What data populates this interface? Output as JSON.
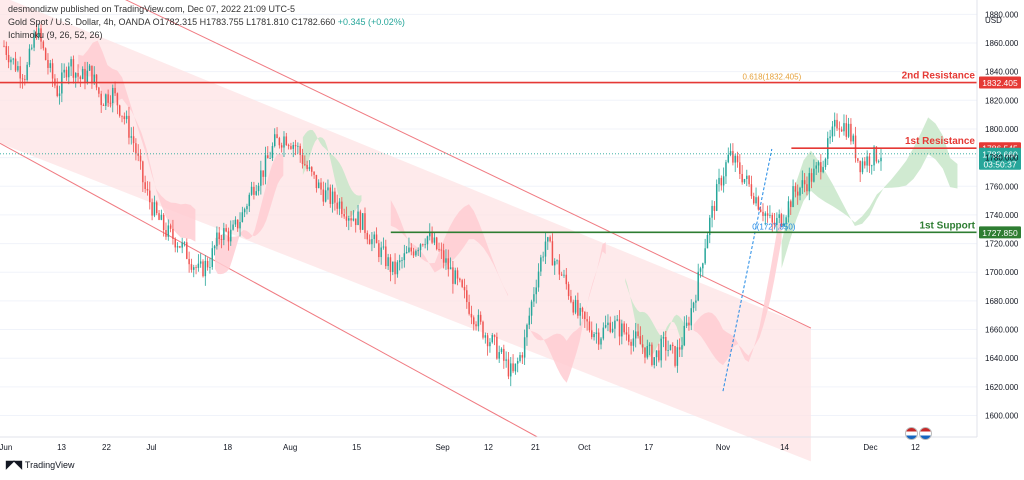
{
  "header": {
    "publisher": "desmondizw published on TradingView.com, Dec 07, 2022 21:09 UTC-5",
    "instrument": "Gold Spot / U.S. Dollar, 4h, OANDA",
    "ohlc": "O1782.315  H1783.755  L1781.810  C1782.660",
    "change": "+0.345 (+0.02%)",
    "indicator": "Ichimoku (9, 26, 52, 26)"
  },
  "footer": {
    "brand": "TradingView"
  },
  "colors": {
    "channel_fill": "#fde3e4",
    "channel_line": "#f07b82",
    "resistance": "#e53935",
    "support": "#2e7d32",
    "fib_text": "#e6a23c",
    "price_tag": "#26a69a",
    "up_candle": "#26a69a",
    "down_candle": "#ef5350",
    "cloud_bull": "#c8e6c9",
    "cloud_bear": "#ffcdd2"
  },
  "chart_data": {
    "type": "candlestick",
    "currency_label": "USD",
    "ylim": [
      1585,
      1890
    ],
    "y_ticks": [
      1600,
      1620,
      1640,
      1660,
      1680,
      1700,
      1720,
      1740,
      1760,
      1780,
      1800,
      1820,
      1840,
      1860,
      1880
    ],
    "x_tick_labels": [
      "Jun",
      "13",
      "22",
      "Jul",
      "18",
      "Aug",
      "15",
      "Sep",
      "12",
      "21",
      "Oct",
      "17",
      "Nov",
      "14",
      "Dec",
      "12"
    ],
    "levels": [
      {
        "name": "2nd Resistance",
        "value": 1832.405,
        "tag": "1832.405",
        "color": "#e53935"
      },
      {
        "name": "1st Resistance",
        "value": 1786.545,
        "tag": "1786.545",
        "color": "#e53935"
      },
      {
        "name": "1st Support",
        "value": 1727.85,
        "tag": "1727.850",
        "color": "#2e7d32"
      }
    ],
    "fib_labels": [
      {
        "text": "0.618(1832.405)",
        "value": 1832.405
      },
      {
        "text": "0(1727.850)",
        "value": 1727.85
      }
    ],
    "current_price": {
      "value": 1782.66,
      "tag": "1782.660",
      "countdown": "03:50:37"
    },
    "close_path": [
      1858,
      1845,
      1838,
      1870,
      1845,
      1825,
      1848,
      1835,
      1840,
      1820,
      1826,
      1810,
      1790,
      1758,
      1740,
      1728,
      1722,
      1712,
      1700,
      1708,
      1728,
      1726,
      1740,
      1760,
      1772,
      1790,
      1795,
      1788,
      1772,
      1760,
      1752,
      1748,
      1740,
      1736,
      1722,
      1712,
      1700,
      1710,
      1718,
      1726,
      1716,
      1704,
      1690,
      1676,
      1662,
      1652,
      1640,
      1628,
      1648,
      1690,
      1722,
      1706,
      1690,
      1670,
      1662,
      1656,
      1665,
      1660,
      1655,
      1648,
      1640,
      1650,
      1640,
      1660,
      1690,
      1730,
      1760,
      1782,
      1770,
      1758,
      1745,
      1732,
      1740,
      1756,
      1762,
      1770,
      1785,
      1806,
      1800,
      1776,
      1780,
      1783
    ],
    "ichimoku_cloud": [
      {
        "from": 0.08,
        "to": 0.2,
        "kind": "bear"
      },
      {
        "from": 0.22,
        "to": 0.29,
        "kind": "bear"
      },
      {
        "from": 0.31,
        "to": 0.37,
        "kind": "bull"
      },
      {
        "from": 0.4,
        "to": 0.52,
        "kind": "bear"
      },
      {
        "from": 0.54,
        "to": 0.62,
        "kind": "bear"
      },
      {
        "from": 0.64,
        "to": 0.7,
        "kind": "bull"
      },
      {
        "from": 0.71,
        "to": 0.8,
        "kind": "bear"
      },
      {
        "from": 0.8,
        "to": 0.98,
        "kind": "bull"
      }
    ]
  }
}
